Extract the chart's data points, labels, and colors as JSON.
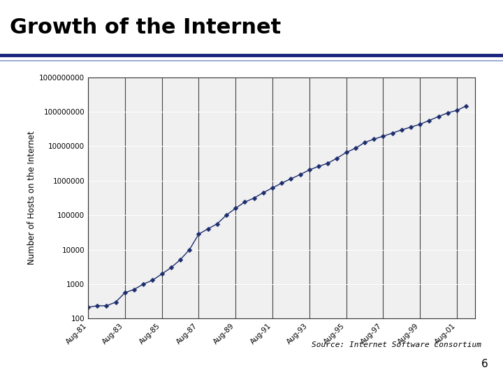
{
  "title": "Growth of the Internet",
  "ylabel": "Number of Hosts on the Internet",
  "source_text": "Source: Internet Software Consortium",
  "page_number": "6",
  "title_fontsize": 22,
  "title_color": "#000000",
  "slide_background": "#ffffff",
  "chart_background": "#f0f0f0",
  "line_color": "#1c2d6e",
  "marker_color": "#1c2d6e",
  "divider_color_dark": "#1a237e",
  "divider_color_light": "#8aa0cc",
  "xtick_labels": [
    "Aug-81",
    "Aug-83",
    "Aug-85",
    "Aug-87",
    "Aug-89",
    "Aug-91",
    "Aug-93",
    "Aug-95",
    "Aug-97",
    "Aug-99",
    "Aug-01"
  ],
  "xtick_positions": [
    1981,
    1983,
    1985,
    1987,
    1989,
    1991,
    1993,
    1995,
    1997,
    1999,
    2001
  ],
  "x_values": [
    1981.0,
    1981.5,
    1982.0,
    1982.5,
    1983.0,
    1983.5,
    1984.0,
    1984.5,
    1985.0,
    1985.5,
    1986.0,
    1986.5,
    1987.0,
    1987.5,
    1988.0,
    1988.5,
    1989.0,
    1989.5,
    1990.0,
    1990.5,
    1991.0,
    1991.5,
    1992.0,
    1992.5,
    1993.0,
    1993.5,
    1994.0,
    1994.5,
    1995.0,
    1995.5,
    1996.0,
    1996.5,
    1997.0,
    1997.5,
    1998.0,
    1998.5,
    1999.0,
    1999.5,
    2000.0,
    2000.5,
    2001.0,
    2001.5
  ],
  "y_values": [
    213,
    235,
    235,
    300,
    562,
    700,
    1000,
    1300,
    1961,
    3000,
    5089,
    10000,
    28174,
    40000,
    56000,
    100000,
    159000,
    240000,
    313000,
    450000,
    617000,
    850000,
    1136000,
    1500000,
    2056000,
    2600000,
    3212000,
    4500000,
    6642000,
    8700000,
    12881000,
    16000000,
    19540000,
    24000000,
    29670000,
    36000000,
    43230000,
    56000000,
    72398092,
    93000000,
    109574429,
    147344723
  ],
  "ytick_vals": [
    100,
    1000,
    10000,
    100000,
    1000000,
    10000000,
    100000000,
    1000000000
  ],
  "ytick_labels": [
    "100",
    "1000",
    "10000",
    "100000",
    "1000000",
    "10000000",
    "100000000",
    "1000000000"
  ],
  "ylim_min": 100,
  "ylim_max": 1000000000,
  "xlim_min": 1981,
  "xlim_max": 2002
}
